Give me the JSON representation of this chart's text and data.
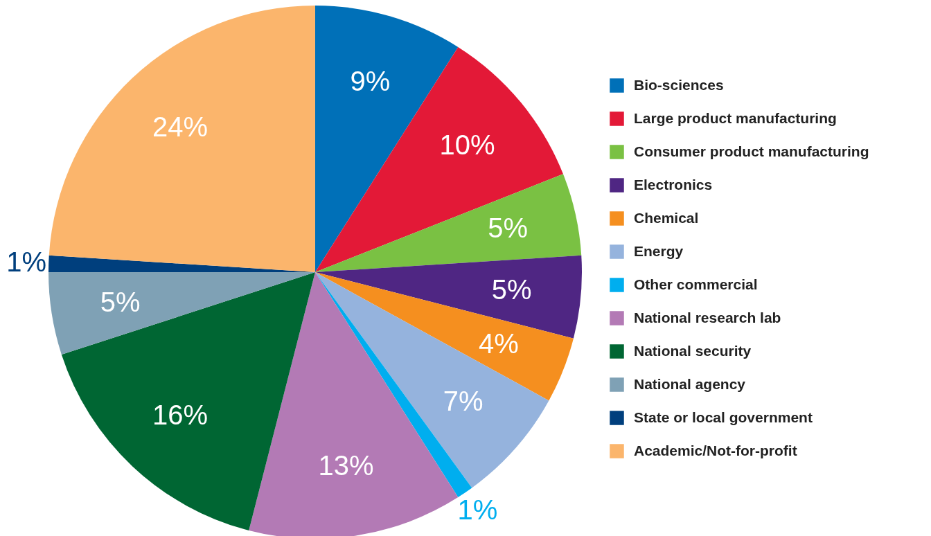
{
  "chart_data": {
    "type": "pie",
    "categories": [
      "Bio-sciences",
      "Large product manufacturing",
      "Consumer product manufacturing",
      "Electronics",
      "Chemical",
      "Energy",
      "Other commercial",
      "National research lab",
      "National security",
      "National agency",
      "State or local government",
      "Academic/Not-for-profit"
    ],
    "values": [
      9,
      10,
      5,
      5,
      4,
      7,
      1,
      13,
      16,
      5,
      1,
      24
    ],
    "colors": [
      "#0070b8",
      "#e31937",
      "#7ac143",
      "#4f2683",
      "#f58f1f",
      "#95b3dd",
      "#00aeef",
      "#b37ab5",
      "#006633",
      "#7fa1b5",
      "#003f7d",
      "#fbb56c"
    ],
    "value_labels": [
      "9%",
      "10%",
      "5%",
      "5%",
      "4%",
      "7%",
      "1%",
      "13%",
      "16%",
      "5%",
      "1%",
      "24%"
    ],
    "legend": "right"
  }
}
